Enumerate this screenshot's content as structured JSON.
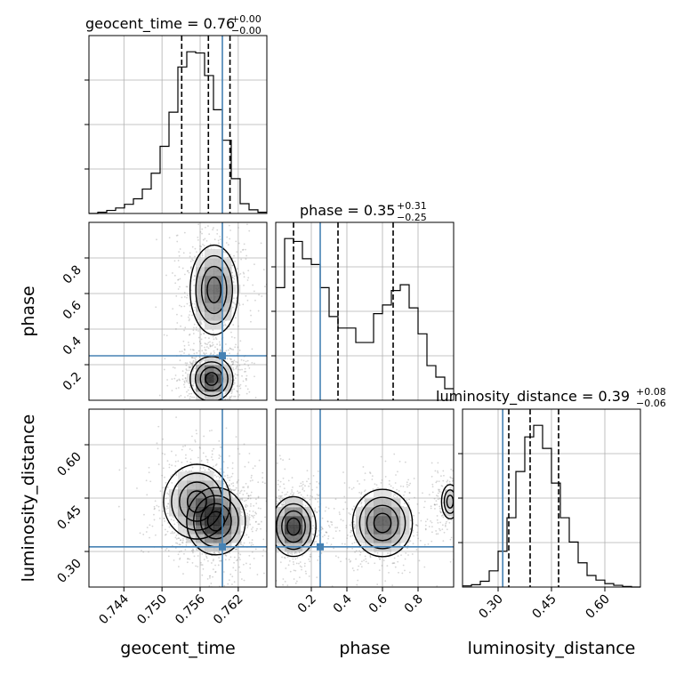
{
  "figure": {
    "type": "corner-plot",
    "colors": {
      "truth": "#4682b4",
      "hist": "#000000",
      "grid": "#b0b0b0",
      "frame": "#000000"
    }
  },
  "titles": {
    "t0": {
      "main": "geocent_time = 0.76",
      "sup": "+0.00",
      "sub": "−0.00"
    },
    "t1": {
      "main": "phase = 0.35",
      "sup": "+0.31",
      "sub": "−0.25"
    },
    "t2": {
      "main": "luminosity_distance = 0.39",
      "sup": "+0.08",
      "sub": "−0.06"
    }
  },
  "labels": {
    "x0": "geocent_time",
    "x1": "phase",
    "x2": "luminosity_distance",
    "y1": "phase",
    "y2": "luminosity_distance"
  },
  "ticks": {
    "geocent_time": [
      "0.744",
      "0.750",
      "0.756",
      "0.762"
    ],
    "phase": [
      "0.2",
      "0.4",
      "0.6",
      "0.8"
    ],
    "luminosity_distance": [
      "0.30",
      "0.45",
      "0.60"
    ]
  },
  "chart_data": [
    {
      "type": "histogram",
      "panel": "geocent_time",
      "xlim": [
        0.7385,
        0.7665
      ],
      "bins": [
        0.7385,
        0.7399,
        0.7413,
        0.7427,
        0.7441,
        0.7455,
        0.7469,
        0.7483,
        0.7497,
        0.7511,
        0.7525,
        0.7539,
        0.7553,
        0.7567,
        0.7581,
        0.7595,
        0.7609,
        0.7623,
        0.7637,
        0.7651,
        0.7665
      ],
      "counts": [
        0,
        2,
        5,
        9,
        15,
        24,
        40,
        66,
        110,
        166,
        240,
        265,
        263,
        226,
        170,
        120,
        57,
        16,
        6,
        2
      ],
      "quantiles": [
        0.7531,
        0.7573,
        0.7607
      ],
      "truth": 0.7595
    },
    {
      "type": "histogram",
      "panel": "phase",
      "xlim": [
        0.0,
        1.0
      ],
      "bins": [
        0.0,
        0.05,
        0.1,
        0.15,
        0.2,
        0.25,
        0.3,
        0.35,
        0.4,
        0.45,
        0.5,
        0.55,
        0.6,
        0.65,
        0.7,
        0.75,
        0.8,
        0.85,
        0.9,
        0.95,
        1.0
      ],
      "counts": [
        195,
        280,
        275,
        245,
        235,
        195,
        145,
        125,
        125,
        100,
        100,
        150,
        165,
        190,
        200,
        160,
        115,
        60,
        40,
        20
      ],
      "quantiles": [
        0.1,
        0.35,
        0.66
      ],
      "truth": 0.25
    },
    {
      "type": "histogram",
      "panel": "luminosity_distance",
      "xlim": [
        0.2,
        0.7
      ],
      "bins": [
        0.2,
        0.225,
        0.25,
        0.275,
        0.3,
        0.325,
        0.35,
        0.375,
        0.4,
        0.425,
        0.45,
        0.475,
        0.5,
        0.525,
        0.55,
        0.575,
        0.6,
        0.625,
        0.65,
        0.675,
        0.7
      ],
      "counts": [
        2,
        4,
        10,
        28,
        62,
        120,
        200,
        260,
        280,
        240,
        180,
        120,
        78,
        42,
        20,
        12,
        6,
        3,
        1,
        0
      ],
      "quantiles": [
        0.33,
        0.39,
        0.47
      ],
      "truth": 0.313
    },
    {
      "type": "2d-density",
      "x": "geocent_time",
      "y": "phase",
      "xlim": [
        0.7385,
        0.7665
      ],
      "ylim": [
        0.0,
        1.0
      ],
      "modes": [
        {
          "cx": 0.7578,
          "cy": 0.12,
          "sx": 0.0016,
          "sy": 0.06,
          "w": 1.0
        },
        {
          "cx": 0.7582,
          "cy": 0.62,
          "sx": 0.0018,
          "sy": 0.12,
          "w": 0.75
        }
      ],
      "truth": [
        0.7595,
        0.25
      ]
    },
    {
      "type": "2d-density",
      "x": "geocent_time",
      "y": "luminosity_distance",
      "xlim": [
        0.7385,
        0.7665
      ],
      "ylim": [
        0.2,
        0.7
      ],
      "modes": [
        {
          "cx": 0.7585,
          "cy": 0.385,
          "sx": 0.0022,
          "sy": 0.045,
          "w": 1.0
        },
        {
          "cx": 0.7555,
          "cy": 0.44,
          "sx": 0.0025,
          "sy": 0.05,
          "w": 0.55
        }
      ],
      "truth": [
        0.7595,
        0.313
      ]
    },
    {
      "type": "2d-density",
      "x": "phase",
      "y": "luminosity_distance",
      "xlim": [
        0.0,
        1.0
      ],
      "ylim": [
        0.2,
        0.7
      ],
      "modes": [
        {
          "cx": 0.1,
          "cy": 0.37,
          "sx": 0.06,
          "sy": 0.04,
          "w": 1.0
        },
        {
          "cx": 0.6,
          "cy": 0.38,
          "sx": 0.08,
          "sy": 0.045,
          "w": 0.8
        },
        {
          "cx": 0.98,
          "cy": 0.44,
          "sx": 0.03,
          "sy": 0.03,
          "w": 0.3
        }
      ],
      "truth": [
        0.25,
        0.313
      ]
    }
  ]
}
